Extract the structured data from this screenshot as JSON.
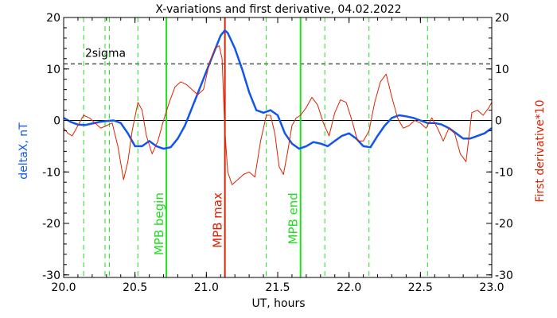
{
  "chart_data": {
    "type": "line",
    "title": "X-variations and first derivative, 04.02.2022",
    "xlabel": "UT, hours",
    "ylabel_left": "deltaX, nT",
    "ylabel_right": "First derivative*10",
    "xlim": [
      20.0,
      23.0
    ],
    "ylim": [
      -30.5,
      20
    ],
    "xticks": [
      20.0,
      20.5,
      21.0,
      21.5,
      22.0,
      22.5,
      23.0
    ],
    "xtick_labels": [
      "20.0",
      "20.5",
      "21.0",
      "21.5",
      "22.0",
      "22.5",
      "23.0"
    ],
    "yticks": [
      -30,
      -20,
      -10,
      0,
      10,
      20
    ],
    "ytick_labels": [
      "-30",
      "-20",
      "-10",
      "0",
      "10",
      "20"
    ],
    "sigma_level": 11,
    "sigma_label": "2sigma",
    "green_dashed_lines": [
      20.14,
      20.29,
      20.32,
      20.52,
      21.42,
      21.83,
      22.14,
      22.55
    ],
    "markers": [
      {
        "label": "MPB begin",
        "x": 20.72,
        "color": "#22dd22"
      },
      {
        "label": "MPB max",
        "x": 21.13,
        "color": "#dd2200"
      },
      {
        "label": "MPB end",
        "x": 21.66,
        "color": "#22dd22"
      }
    ],
    "series": [
      {
        "name": "deltaX, nT",
        "axis": "left",
        "color": "#1155ee",
        "x": [
          20.0,
          20.05,
          20.1,
          20.15,
          20.2,
          20.25,
          20.3,
          20.35,
          20.4,
          20.45,
          20.5,
          20.55,
          20.6,
          20.65,
          20.7,
          20.75,
          20.8,
          20.85,
          20.9,
          20.95,
          21.0,
          21.05,
          21.1,
          21.13,
          21.15,
          21.2,
          21.25,
          21.3,
          21.35,
          21.4,
          21.45,
          21.5,
          21.55,
          21.6,
          21.65,
          21.7,
          21.75,
          21.8,
          21.85,
          21.9,
          21.95,
          22.0,
          22.05,
          22.1,
          22.15,
          22.2,
          22.25,
          22.3,
          22.35,
          22.4,
          22.45,
          22.5,
          22.55,
          22.6,
          22.65,
          22.7,
          22.75,
          22.8,
          22.85,
          22.9,
          22.95,
          23.0
        ],
        "y": [
          0.5,
          -0.3,
          -0.8,
          -0.9,
          -0.6,
          -0.3,
          -0.1,
          0.0,
          -0.5,
          -2.5,
          -5.0,
          -5.0,
          -4.0,
          -5.0,
          -5.5,
          -5.2,
          -3.5,
          -1.0,
          2.5,
          6.0,
          9.5,
          13.0,
          16.5,
          17.5,
          17.0,
          14.0,
          10.0,
          5.5,
          2.0,
          1.5,
          2.0,
          1.0,
          -2.5,
          -4.5,
          -5.5,
          -5.0,
          -4.2,
          -4.5,
          -5.0,
          -4.0,
          -3.0,
          -2.5,
          -3.5,
          -5.0,
          -5.2,
          -3.0,
          -1.0,
          0.5,
          1.0,
          0.8,
          0.5,
          0.0,
          -0.5,
          -0.5,
          -0.8,
          -1.5,
          -2.5,
          -3.5,
          -3.5,
          -3.0,
          -2.5,
          -1.5
        ]
      },
      {
        "name": "First derivative*10",
        "axis": "right",
        "color": "#dd2200",
        "x": [
          20.0,
          20.03,
          20.06,
          20.1,
          20.14,
          20.18,
          20.22,
          20.26,
          20.3,
          20.34,
          20.38,
          20.42,
          20.45,
          20.48,
          20.52,
          20.55,
          20.58,
          20.62,
          20.66,
          20.7,
          20.74,
          20.78,
          20.82,
          20.86,
          20.9,
          20.94,
          20.98,
          21.02,
          21.06,
          21.09,
          21.11,
          21.13,
          21.15,
          21.18,
          21.22,
          21.26,
          21.3,
          21.34,
          21.38,
          21.42,
          21.45,
          21.48,
          21.51,
          21.54,
          21.57,
          21.6,
          21.63,
          21.66,
          21.7,
          21.74,
          21.78,
          21.82,
          21.86,
          21.9,
          21.94,
          21.98,
          22.02,
          22.06,
          22.1,
          22.14,
          22.18,
          22.22,
          22.26,
          22.3,
          22.34,
          22.38,
          22.42,
          22.46,
          22.5,
          22.54,
          22.58,
          22.62,
          22.66,
          22.7,
          22.74,
          22.78,
          22.82,
          22.86,
          22.9,
          22.94,
          22.98,
          23.0
        ],
        "y": [
          -1.5,
          -2.5,
          -3.0,
          -1.0,
          1.0,
          0.5,
          -0.5,
          -1.5,
          -1.0,
          -0.5,
          -5.0,
          -11.5,
          -8.0,
          -2.0,
          3.5,
          2.0,
          -3.0,
          -6.5,
          -4.0,
          0.0,
          3.5,
          6.5,
          7.5,
          7.0,
          6.0,
          5.0,
          6.0,
          11.0,
          14.0,
          14.5,
          12.0,
          -2.0,
          -10.0,
          -12.5,
          -11.5,
          -10.5,
          -10.0,
          -11.0,
          -4.0,
          1.0,
          1.0,
          -2.5,
          -9.0,
          -10.5,
          -6.0,
          -1.0,
          0.5,
          1.0,
          2.5,
          4.5,
          3.0,
          -0.5,
          -3.0,
          1.5,
          4.0,
          3.5,
          0.0,
          -4.0,
          -4.0,
          -2.0,
          3.5,
          7.5,
          9.0,
          4.5,
          0.5,
          -1.5,
          -1.0,
          0.0,
          -0.5,
          -1.5,
          0.5,
          -1.5,
          -4.0,
          -1.5,
          -2.5,
          -6.5,
          -8.0,
          1.5,
          2.0,
          1.0,
          2.5,
          3.5
        ]
      }
    ],
    "grid": false,
    "legend": "none"
  }
}
